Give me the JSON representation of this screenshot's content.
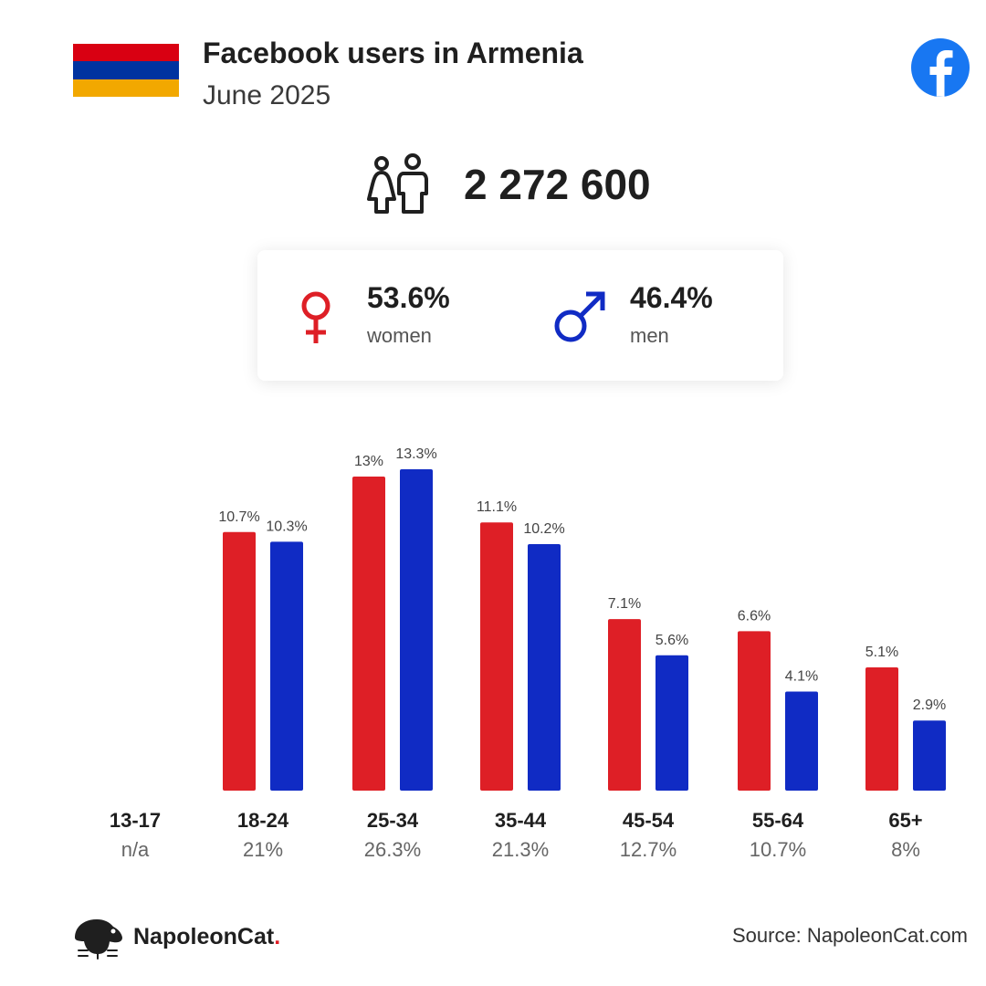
{
  "header": {
    "title": "Facebook users in Armenia",
    "subtitle": "June 2025",
    "flag_colors": [
      "#d90012",
      "#0033a0",
      "#f2a800"
    ]
  },
  "icons": {
    "flag": "armenia-flag-icon",
    "platform": "facebook-logo-icon",
    "people": "people-icon",
    "female": "female-symbol-icon",
    "male": "male-symbol-icon",
    "brand": "napoleoncat-logo-icon"
  },
  "total_users": "2 272 600",
  "gender": {
    "women_pct": "53.6%",
    "women_label": "women",
    "men_pct": "46.4%",
    "men_label": "men"
  },
  "colors": {
    "women": "#de1f26",
    "men": "#102bc4",
    "facebook": "#1877f2",
    "text": "#1f1f1f"
  },
  "chart_data": {
    "type": "bar",
    "categories": [
      "13-17",
      "18-24",
      "25-34",
      "35-44",
      "45-54",
      "55-64",
      "65+"
    ],
    "category_totals": [
      "n/a",
      "21%",
      "26.3%",
      "21.3%",
      "12.7%",
      "10.7%",
      "8%"
    ],
    "series": [
      {
        "name": "women",
        "values": [
          null,
          10.7,
          13,
          11.1,
          7.1,
          6.6,
          5.1
        ],
        "labels": [
          "",
          "10.7%",
          "13%",
          "11.1%",
          "7.1%",
          "6.6%",
          "5.1%"
        ]
      },
      {
        "name": "men",
        "values": [
          null,
          10.3,
          13.3,
          10.2,
          5.6,
          4.1,
          2.9
        ],
        "labels": [
          "",
          "10.3%",
          "13.3%",
          "10.2%",
          "5.6%",
          "4.1%",
          "2.9%"
        ]
      }
    ],
    "ylim": [
      0,
      13.3
    ],
    "grid": false
  },
  "footer": {
    "brand_name": "NapoleonCat",
    "brand_dot": ".",
    "source": "Source: NapoleonCat.com"
  }
}
